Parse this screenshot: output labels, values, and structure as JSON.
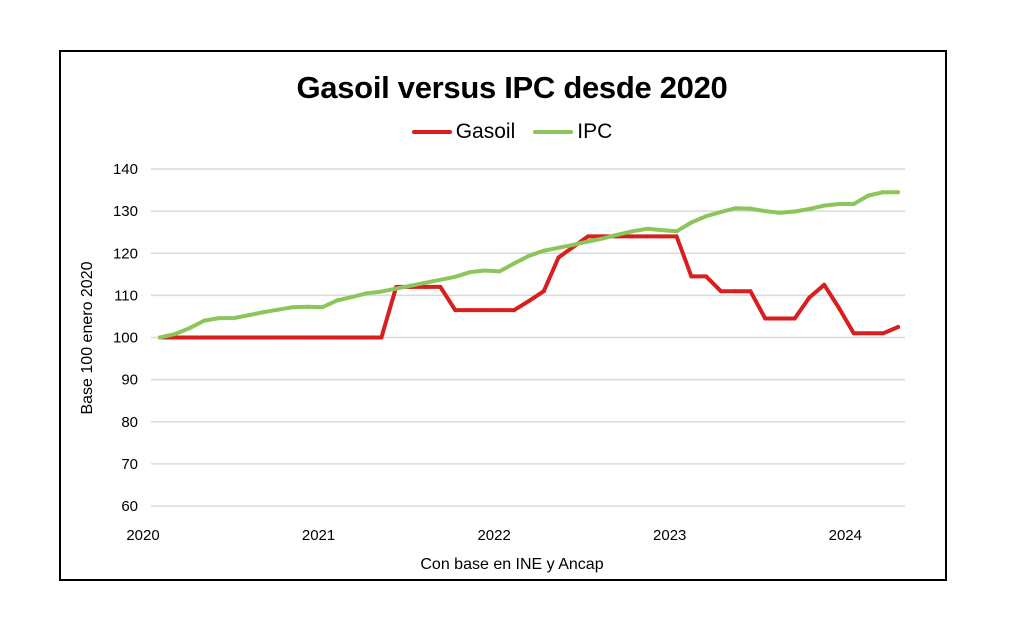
{
  "chart_data": {
    "type": "line",
    "title": "Gasoil versus IPC desde 2020",
    "xlabel": "Con base en INE y Ancap",
    "ylabel": "Base 100 enero 2020",
    "ylim": [
      60,
      140
    ],
    "yticks": [
      "60",
      "70",
      "80",
      "90",
      "100",
      "110",
      "120",
      "130",
      "140"
    ],
    "xticks": [
      "2020",
      "2021",
      "2022",
      "2023",
      "2024"
    ],
    "xlim": [
      2020,
      2024.34
    ],
    "grid": true,
    "legend_position": "top",
    "x": [
      "2020-02",
      "2020-03",
      "2020-04",
      "2020-05",
      "2020-06",
      "2020-07",
      "2020-08",
      "2020-09",
      "2020-10",
      "2020-11",
      "2020-12",
      "2021-01",
      "2021-02",
      "2021-03",
      "2021-04",
      "2021-05",
      "2021-06",
      "2021-07",
      "2021-08",
      "2021-09",
      "2021-10",
      "2021-11",
      "2021-12",
      "2022-01",
      "2022-02",
      "2022-03",
      "2022-04",
      "2022-05",
      "2022-06",
      "2022-07",
      "2022-08",
      "2022-09",
      "2022-10",
      "2022-11",
      "2022-12",
      "2023-01",
      "2023-02",
      "2023-03",
      "2023-04",
      "2023-05",
      "2023-06",
      "2023-07",
      "2023-08",
      "2023-09",
      "2023-10",
      "2023-11",
      "2023-12",
      "2024-01",
      "2024-02",
      "2024-03",
      "2024-04"
    ],
    "series": [
      {
        "name": "Gasoil",
        "color": "#d81e1e",
        "values": [
          100,
          100,
          100,
          100,
          100,
          100,
          100,
          100,
          100,
          100,
          100,
          100,
          100,
          100,
          100,
          100,
          112,
          112,
          112,
          112,
          106.5,
          106.5,
          106.5,
          106.5,
          106.5,
          108.7,
          111,
          119,
          121.5,
          124,
          124,
          124,
          124,
          124,
          124,
          124,
          114.5,
          114.5,
          111,
          111,
          111,
          104.5,
          104.5,
          104.5,
          109.5,
          112.5,
          107,
          101,
          101,
          101,
          102.5
        ]
      },
      {
        "name": "IPC",
        "color": "#8cc65a",
        "values": [
          100,
          100.8,
          102.2,
          104,
          104.6,
          104.6,
          105.3,
          106,
          106.6,
          107.2,
          107.3,
          107.2,
          108.8,
          109.6,
          110.5,
          110.9,
          111.6,
          112.3,
          113,
          113.7,
          114.4,
          115.5,
          115.9,
          115.7,
          117.6,
          119.4,
          120.6,
          121.3,
          122,
          122.8,
          123.5,
          124.4,
          125.2,
          125.8,
          125.5,
          125.2,
          127.3,
          128.8,
          129.8,
          130.7,
          130.6,
          130,
          129.6,
          129.9,
          130.5,
          131.3,
          131.7,
          131.7,
          133.7,
          134.5,
          134.5
        ]
      }
    ]
  }
}
